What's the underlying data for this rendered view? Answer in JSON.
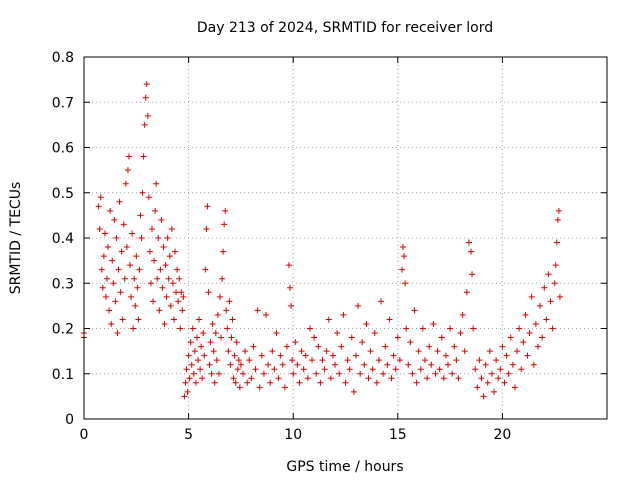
{
  "chart_data": {
    "type": "scatter",
    "title": "Day 213 of 2024, SRMTID for receiver lord",
    "xlabel": "GPS time / hours",
    "ylabel": "SRMTID / TECUs",
    "xlim": [
      0,
      25
    ],
    "ylim": [
      0,
      0.8
    ],
    "xticks": [
      0,
      5,
      10,
      15,
      20
    ],
    "yticks": [
      0,
      0.1,
      0.2,
      0.3,
      0.4,
      0.5,
      0.6,
      0.7,
      0.8
    ],
    "xtick_labels": [
      "0",
      "5",
      "10",
      "15",
      "20"
    ],
    "ytick_labels": [
      "0",
      "0.1",
      "0.2",
      "0.3",
      "0.4",
      "0.5",
      "0.6",
      "0.7",
      "0.8"
    ],
    "grid": true,
    "marker": "+",
    "color": "#dd0000",
    "series": [
      {
        "name": "SRMTID",
        "points": [
          [
            0.0,
            0.18
          ],
          [
            0.0,
            0.19
          ],
          [
            0.7,
            0.47
          ],
          [
            0.75,
            0.42
          ],
          [
            0.8,
            0.49
          ],
          [
            0.85,
            0.33
          ],
          [
            0.9,
            0.29
          ],
          [
            0.95,
            0.36
          ],
          [
            1.0,
            0.41
          ],
          [
            1.05,
            0.27
          ],
          [
            1.1,
            0.31
          ],
          [
            1.15,
            0.38
          ],
          [
            1.2,
            0.24
          ],
          [
            1.25,
            0.46
          ],
          [
            1.3,
            0.21
          ],
          [
            1.35,
            0.35
          ],
          [
            1.4,
            0.3
          ],
          [
            1.45,
            0.44
          ],
          [
            1.5,
            0.26
          ],
          [
            1.55,
            0.4
          ],
          [
            1.6,
            0.19
          ],
          [
            1.65,
            0.33
          ],
          [
            1.7,
            0.48
          ],
          [
            1.75,
            0.28
          ],
          [
            1.8,
            0.37
          ],
          [
            1.85,
            0.22
          ],
          [
            1.9,
            0.43
          ],
          [
            1.95,
            0.31
          ],
          [
            2.0,
            0.52
          ],
          [
            2.05,
            0.38
          ],
          [
            2.1,
            0.55
          ],
          [
            2.15,
            0.58
          ],
          [
            2.2,
            0.34
          ],
          [
            2.25,
            0.27
          ],
          [
            2.3,
            0.41
          ],
          [
            2.35,
            0.2
          ],
          [
            2.4,
            0.31
          ],
          [
            2.45,
            0.25
          ],
          [
            2.5,
            0.36
          ],
          [
            2.55,
            0.29
          ],
          [
            2.6,
            0.22
          ],
          [
            2.65,
            0.33
          ],
          [
            2.7,
            0.45
          ],
          [
            2.75,
            0.4
          ],
          [
            2.8,
            0.5
          ],
          [
            2.85,
            0.58
          ],
          [
            2.9,
            0.65
          ],
          [
            2.95,
            0.71
          ],
          [
            3.0,
            0.74
          ],
          [
            3.05,
            0.67
          ],
          [
            3.1,
            0.49
          ],
          [
            3.15,
            0.37
          ],
          [
            3.2,
            0.3
          ],
          [
            3.25,
            0.42
          ],
          [
            3.3,
            0.26
          ],
          [
            3.35,
            0.35
          ],
          [
            3.4,
            0.46
          ],
          [
            3.45,
            0.52
          ],
          [
            3.5,
            0.31
          ],
          [
            3.55,
            0.4
          ],
          [
            3.6,
            0.24
          ],
          [
            3.65,
            0.33
          ],
          [
            3.7,
            0.44
          ],
          [
            3.75,
            0.29
          ],
          [
            3.8,
            0.38
          ],
          [
            3.85,
            0.21
          ],
          [
            3.9,
            0.34
          ],
          [
            3.95,
            0.27
          ],
          [
            4.0,
            0.4
          ],
          [
            4.05,
            0.31
          ],
          [
            4.1,
            0.36
          ],
          [
            4.15,
            0.25
          ],
          [
            4.2,
            0.42
          ],
          [
            4.25,
            0.3
          ],
          [
            4.3,
            0.22
          ],
          [
            4.35,
            0.37
          ],
          [
            4.4,
            0.28
          ],
          [
            4.45,
            0.33
          ],
          [
            4.5,
            0.26
          ],
          [
            4.55,
            0.31
          ],
          [
            4.6,
            0.2
          ],
          [
            4.65,
            0.28
          ],
          [
            4.7,
            0.24
          ],
          [
            4.75,
            0.27
          ],
          [
            4.8,
            0.05
          ],
          [
            4.85,
            0.08
          ],
          [
            4.9,
            0.11
          ],
          [
            4.95,
            0.06
          ],
          [
            5.0,
            0.14
          ],
          [
            5.05,
            0.09
          ],
          [
            5.1,
            0.17
          ],
          [
            5.15,
            0.12
          ],
          [
            5.2,
            0.2
          ],
          [
            5.25,
            0.1
          ],
          [
            5.3,
            0.15
          ],
          [
            5.35,
            0.08
          ],
          [
            5.4,
            0.18
          ],
          [
            5.45,
            0.13
          ],
          [
            5.5,
            0.22
          ],
          [
            5.55,
            0.11
          ],
          [
            5.6,
            0.16
          ],
          [
            5.65,
            0.09
          ],
          [
            5.7,
            0.19
          ],
          [
            5.75,
            0.14
          ],
          [
            5.8,
            0.33
          ],
          [
            5.85,
            0.42
          ],
          [
            5.9,
            0.47
          ],
          [
            5.95,
            0.28
          ],
          [
            6.0,
            0.12
          ],
          [
            6.05,
            0.17
          ],
          [
            6.1,
            0.1
          ],
          [
            6.15,
            0.21
          ],
          [
            6.2,
            0.15
          ],
          [
            6.25,
            0.08
          ],
          [
            6.3,
            0.19
          ],
          [
            6.35,
            0.13
          ],
          [
            6.4,
            0.23
          ],
          [
            6.45,
            0.1
          ],
          [
            6.5,
            0.27
          ],
          [
            6.55,
            0.18
          ],
          [
            6.6,
            0.31
          ],
          [
            6.65,
            0.37
          ],
          [
            6.7,
            0.43
          ],
          [
            6.75,
            0.46
          ],
          [
            6.8,
            0.24
          ],
          [
            6.85,
            0.2
          ],
          [
            6.9,
            0.15
          ],
          [
            6.95,
            0.26
          ],
          [
            7.0,
            0.12
          ],
          [
            7.05,
            0.18
          ],
          [
            7.1,
            0.22
          ],
          [
            7.15,
            0.09
          ],
          [
            7.2,
            0.14
          ],
          [
            7.25,
            0.08
          ],
          [
            7.3,
            0.17
          ],
          [
            7.35,
            0.11
          ],
          [
            7.4,
            0.13
          ],
          [
            7.45,
            0.07
          ],
          [
            7.5,
            0.12
          ],
          [
            7.6,
            0.1
          ],
          [
            7.7,
            0.15
          ],
          [
            7.8,
            0.08
          ],
          [
            7.9,
            0.13
          ],
          [
            8.0,
            0.09
          ],
          [
            8.1,
            0.16
          ],
          [
            8.2,
            0.11
          ],
          [
            8.3,
            0.24
          ],
          [
            8.4,
            0.07
          ],
          [
            8.5,
            0.14
          ],
          [
            8.6,
            0.1
          ],
          [
            8.7,
            0.23
          ],
          [
            8.8,
            0.12
          ],
          [
            8.9,
            0.08
          ],
          [
            9.0,
            0.15
          ],
          [
            9.1,
            0.11
          ],
          [
            9.2,
            0.19
          ],
          [
            9.3,
            0.09
          ],
          [
            9.4,
            0.14
          ],
          [
            9.5,
            0.12
          ],
          [
            9.6,
            0.07
          ],
          [
            9.7,
            0.16
          ],
          [
            9.8,
            0.34
          ],
          [
            9.85,
            0.29
          ],
          [
            9.9,
            0.25
          ],
          [
            9.95,
            0.13
          ],
          [
            10.0,
            0.1
          ],
          [
            10.1,
            0.17
          ],
          [
            10.2,
            0.12
          ],
          [
            10.3,
            0.08
          ],
          [
            10.4,
            0.15
          ],
          [
            10.5,
            0.11
          ],
          [
            10.6,
            0.14
          ],
          [
            10.7,
            0.09
          ],
          [
            10.8,
            0.2
          ],
          [
            10.9,
            0.13
          ],
          [
            11.0,
            0.18
          ],
          [
            11.1,
            0.1
          ],
          [
            11.2,
            0.16
          ],
          [
            11.3,
            0.08
          ],
          [
            11.4,
            0.13
          ],
          [
            11.5,
            0.11
          ],
          [
            11.6,
            0.15
          ],
          [
            11.7,
            0.22
          ],
          [
            11.8,
            0.09
          ],
          [
            11.9,
            0.14
          ],
          [
            12.0,
            0.12
          ],
          [
            12.1,
            0.19
          ],
          [
            12.2,
            0.1
          ],
          [
            12.3,
            0.16
          ],
          [
            12.4,
            0.23
          ],
          [
            12.5,
            0.08
          ],
          [
            12.6,
            0.13
          ],
          [
            12.7,
            0.11
          ],
          [
            12.8,
            0.18
          ],
          [
            12.9,
            0.06
          ],
          [
            13.0,
            0.14
          ],
          [
            13.1,
            0.25
          ],
          [
            13.2,
            0.1
          ],
          [
            13.3,
            0.17
          ],
          [
            13.4,
            0.12
          ],
          [
            13.5,
            0.21
          ],
          [
            13.6,
            0.09
          ],
          [
            13.7,
            0.15
          ],
          [
            13.8,
            0.11
          ],
          [
            13.9,
            0.19
          ],
          [
            14.0,
            0.08
          ],
          [
            14.1,
            0.13
          ],
          [
            14.2,
            0.26
          ],
          [
            14.3,
            0.1
          ],
          [
            14.4,
            0.16
          ],
          [
            14.5,
            0.12
          ],
          [
            14.6,
            0.22
          ],
          [
            14.7,
            0.09
          ],
          [
            14.8,
            0.14
          ],
          [
            14.9,
            0.11
          ],
          [
            15.0,
            0.18
          ],
          [
            15.1,
            0.13
          ],
          [
            15.2,
            0.33
          ],
          [
            15.25,
            0.38
          ],
          [
            15.3,
            0.36
          ],
          [
            15.35,
            0.3
          ],
          [
            15.4,
            0.2
          ],
          [
            15.5,
            0.12
          ],
          [
            15.6,
            0.17
          ],
          [
            15.7,
            0.1
          ],
          [
            15.8,
            0.24
          ],
          [
            15.9,
            0.08
          ],
          [
            16.0,
            0.15
          ],
          [
            16.1,
            0.11
          ],
          [
            16.2,
            0.2
          ],
          [
            16.3,
            0.13
          ],
          [
            16.4,
            0.09
          ],
          [
            16.5,
            0.16
          ],
          [
            16.6,
            0.12
          ],
          [
            16.7,
            0.21
          ],
          [
            16.8,
            0.1
          ],
          [
            16.9,
            0.15
          ],
          [
            17.0,
            0.11
          ],
          [
            17.1,
            0.18
          ],
          [
            17.2,
            0.09
          ],
          [
            17.3,
            0.14
          ],
          [
            17.4,
            0.12
          ],
          [
            17.5,
            0.2
          ],
          [
            17.6,
            0.1
          ],
          [
            17.7,
            0.16
          ],
          [
            17.8,
            0.13
          ],
          [
            17.9,
            0.09
          ],
          [
            18.0,
            0.19
          ],
          [
            18.1,
            0.23
          ],
          [
            18.2,
            0.15
          ],
          [
            18.3,
            0.28
          ],
          [
            18.4,
            0.39
          ],
          [
            18.5,
            0.37
          ],
          [
            18.55,
            0.32
          ],
          [
            18.6,
            0.2
          ],
          [
            18.7,
            0.11
          ],
          [
            18.8,
            0.07
          ],
          [
            18.9,
            0.13
          ],
          [
            19.0,
            0.09
          ],
          [
            19.1,
            0.05
          ],
          [
            19.2,
            0.12
          ],
          [
            19.3,
            0.08
          ],
          [
            19.4,
            0.15
          ],
          [
            19.5,
            0.1
          ],
          [
            19.6,
            0.06
          ],
          [
            19.7,
            0.13
          ],
          [
            19.8,
            0.09
          ],
          [
            19.9,
            0.11
          ],
          [
            20.0,
            0.16
          ],
          [
            20.1,
            0.08
          ],
          [
            20.2,
            0.14
          ],
          [
            20.3,
            0.1
          ],
          [
            20.4,
            0.18
          ],
          [
            20.5,
            0.12
          ],
          [
            20.6,
            0.07
          ],
          [
            20.7,
            0.15
          ],
          [
            20.8,
            0.2
          ],
          [
            20.9,
            0.11
          ],
          [
            21.0,
            0.17
          ],
          [
            21.1,
            0.23
          ],
          [
            21.2,
            0.14
          ],
          [
            21.3,
            0.19
          ],
          [
            21.4,
            0.27
          ],
          [
            21.5,
            0.12
          ],
          [
            21.6,
            0.21
          ],
          [
            21.7,
            0.16
          ],
          [
            21.8,
            0.25
          ],
          [
            21.9,
            0.18
          ],
          [
            22.0,
            0.29
          ],
          [
            22.1,
            0.22
          ],
          [
            22.2,
            0.32
          ],
          [
            22.3,
            0.26
          ],
          [
            22.4,
            0.2
          ],
          [
            22.5,
            0.3
          ],
          [
            22.55,
            0.34
          ],
          [
            22.6,
            0.39
          ],
          [
            22.65,
            0.44
          ],
          [
            22.7,
            0.46
          ],
          [
            22.75,
            0.27
          ]
        ]
      }
    ]
  }
}
